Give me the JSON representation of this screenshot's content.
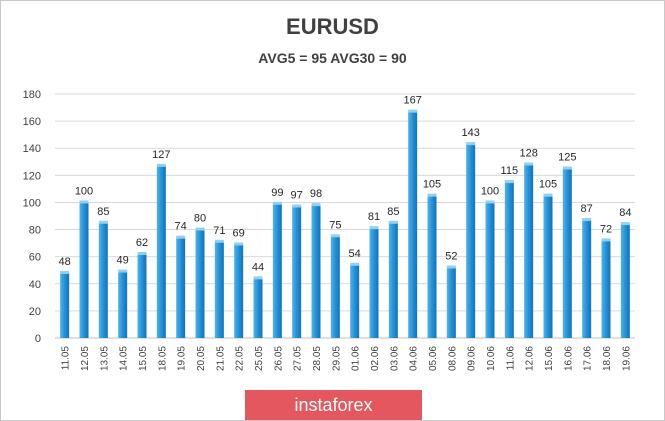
{
  "chart_data": {
    "type": "bar",
    "title": "EURUSD",
    "subtitle": "AVG5 = 95 AVG30 = 90",
    "categories": [
      "11.05",
      "12.05",
      "13.05",
      "14.05",
      "15.05",
      "18.05",
      "19.05",
      "20.05",
      "21.05",
      "22.05",
      "25.05",
      "26.05",
      "27.05",
      "28.05",
      "29.05",
      "01.06",
      "02.06",
      "03.06",
      "04.06",
      "05.06",
      "08.06",
      "09.06",
      "10.06",
      "11.06",
      "12.06",
      "15.06",
      "16.06",
      "17.06",
      "18.06",
      "19.06"
    ],
    "values": [
      48,
      100,
      85,
      49,
      62,
      127,
      74,
      80,
      71,
      69,
      44,
      99,
      97,
      98,
      75,
      54,
      81,
      85,
      167,
      105,
      52,
      143,
      100,
      115,
      128,
      105,
      125,
      87,
      72,
      84
    ],
    "ylim": [
      0,
      180
    ],
    "yticks": [
      0,
      20,
      40,
      60,
      80,
      100,
      120,
      140,
      160,
      180
    ],
    "xlabel": "",
    "ylabel": "",
    "grid": true,
    "bar_color": "#1f8fd6"
  },
  "watermark": "instaforex"
}
